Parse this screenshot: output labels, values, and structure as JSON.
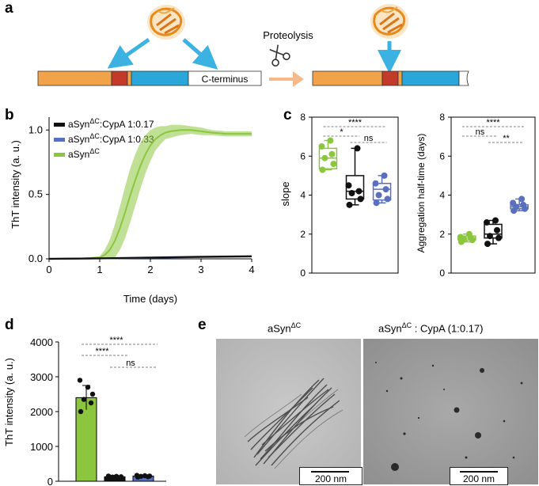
{
  "panels": {
    "a": "a",
    "b": "b",
    "c": "c",
    "d": "d",
    "e": "e"
  },
  "colors": {
    "asyn": "#8cc63f",
    "black": "#111111",
    "blue": "#5b6fbf",
    "domain_orange": "#f2a34a",
    "domain_red": "#c43a2a",
    "domain_blue": "#2aa6d9",
    "arrow_blue": "#3bb2e2",
    "arrow_peach": "#f6b98a",
    "protein": "#e88a1a"
  },
  "schematic": {
    "proteolysis_label": "Proteolysis",
    "cterminus_label": "C-terminus",
    "scissors_icon": "scissors-icon",
    "protein_icon": "cypa-structure-icon"
  },
  "chart_data": [
    {
      "id": "b",
      "type": "line",
      "xlabel": "Time (days)",
      "ylabel": "ThT intensity (a. u.)",
      "xlim": [
        0,
        4
      ],
      "ylim": [
        0,
        1.1
      ],
      "xticks": [
        "0",
        "1",
        "2",
        "3",
        "4"
      ],
      "yticks": [
        "0.0",
        "0.5",
        "1.0"
      ],
      "legend_position": "top-left",
      "legend": [
        {
          "base": "aSyn",
          "sup": "ΔC",
          "suffix": ":CypA 1:0.17",
          "color": "#111111"
        },
        {
          "base": "aSyn",
          "sup": "ΔC",
          "suffix": ":CypA 1:0.33",
          "color": "#5b6fbf"
        },
        {
          "base": "aSyn",
          "sup": "ΔC",
          "suffix": "",
          "color": "#8cc63f"
        }
      ],
      "series": [
        {
          "x": [
            0,
            0.5,
            1.0,
            1.1,
            1.2,
            1.3,
            1.4,
            1.5,
            1.6,
            1.7,
            1.8,
            1.9,
            2.0,
            2.1,
            2.2,
            2.3,
            2.4,
            2.6,
            2.8,
            3.0,
            3.2,
            3.5,
            4.0
          ],
          "y": [
            0.0,
            0.0,
            0.01,
            0.03,
            0.07,
            0.14,
            0.24,
            0.36,
            0.49,
            0.61,
            0.72,
            0.81,
            0.88,
            0.93,
            0.96,
            0.98,
            0.99,
            1.0,
            1.0,
            0.99,
            0.98,
            0.97,
            0.97
          ],
          "band": [
            0.0,
            0.0,
            0.01,
            0.04,
            0.08,
            0.13,
            0.17,
            0.2,
            0.21,
            0.2,
            0.18,
            0.15,
            0.12,
            0.09,
            0.07,
            0.05,
            0.05,
            0.04,
            0.03,
            0.03,
            0.02,
            0.02,
            0.02
          ],
          "color": "#8cc63f"
        },
        {
          "x": [
            0,
            1,
            2,
            3,
            4
          ],
          "y": [
            0.0,
            0.003,
            0.008,
            0.014,
            0.018
          ],
          "band": [
            0,
            0.003,
            0.004,
            0.005,
            0.005
          ],
          "color": "#5b6fbf"
        },
        {
          "x": [
            0,
            1,
            2,
            3,
            4
          ],
          "y": [
            0.0,
            0.004,
            0.01,
            0.016,
            0.02
          ],
          "band": [
            0,
            0.003,
            0.004,
            0.005,
            0.005
          ],
          "color": "#111111"
        }
      ]
    },
    {
      "id": "c1",
      "type": "box",
      "ylabel": "slope",
      "ylim": [
        0,
        8
      ],
      "yticks": [
        "0",
        "2",
        "4",
        "6",
        "8"
      ],
      "boxes": [
        {
          "color": "#8cc63f",
          "min": 5.3,
          "q1": 5.35,
          "median": 5.9,
          "q3": 6.4,
          "max": 6.8,
          "points": [
            5.3,
            5.6,
            5.9,
            6.1,
            6.5,
            6.8
          ]
        },
        {
          "color": "#111111",
          "min": 3.5,
          "q1": 3.8,
          "median": 4.2,
          "q3": 5.0,
          "max": 6.4,
          "points": [
            3.5,
            3.8,
            4.1,
            4.2,
            4.5,
            6.4
          ]
        },
        {
          "color": "#5b6fbf",
          "min": 3.6,
          "q1": 3.75,
          "median": 4.3,
          "q3": 4.6,
          "max": 5.0,
          "points": [
            3.6,
            3.8,
            4.0,
            4.3,
            4.6,
            5.0
          ]
        }
      ],
      "significance": [
        {
          "from": 0,
          "to": 1,
          "label": "*"
        },
        {
          "from": 0,
          "to": 2,
          "label": "****"
        },
        {
          "from": 1,
          "to": 2,
          "label": "ns"
        }
      ]
    },
    {
      "id": "c2",
      "type": "box",
      "ylabel": "Aggregation half-time (days)",
      "ylim": [
        0,
        8
      ],
      "yticks": [
        "0",
        "2",
        "4",
        "6",
        "8"
      ],
      "boxes": [
        {
          "color": "#8cc63f",
          "min": 1.6,
          "q1": 1.7,
          "median": 1.8,
          "q3": 1.9,
          "max": 2.0,
          "points": [
            1.6,
            1.7,
            1.75,
            1.8,
            1.85,
            2.0
          ]
        },
        {
          "color": "#111111",
          "min": 1.5,
          "q1": 1.8,
          "median": 2.0,
          "q3": 2.5,
          "max": 2.7,
          "points": [
            1.5,
            1.8,
            1.9,
            2.2,
            2.6,
            2.7
          ]
        },
        {
          "color": "#5b6fbf",
          "min": 3.2,
          "q1": 3.3,
          "median": 3.4,
          "q3": 3.5,
          "max": 3.8,
          "points": [
            3.2,
            3.3,
            3.4,
            3.5,
            3.6,
            3.8
          ]
        }
      ],
      "significance": [
        {
          "from": 0,
          "to": 1,
          "label": "ns"
        },
        {
          "from": 0,
          "to": 2,
          "label": "****"
        },
        {
          "from": 1,
          "to": 2,
          "label": "**"
        }
      ]
    },
    {
      "id": "d",
      "type": "bar",
      "ylabel": "ThT intensity (a. u.)",
      "ylim": [
        0,
        4000
      ],
      "yticks": [
        "0",
        "1000",
        "2000",
        "3000",
        "4000"
      ],
      "values": [
        2400,
        130,
        150
      ],
      "errors": [
        350,
        40,
        30
      ],
      "colors": [
        "#8cc63f",
        "#111111",
        "#5b6fbf"
      ],
      "points": [
        [
          2000,
          2250,
          2350,
          2500,
          2700,
          2900
        ],
        [
          80,
          100,
          120,
          130,
          140,
          150
        ],
        [
          120,
          130,
          140,
          150,
          160,
          170
        ]
      ],
      "significance": [
        {
          "from": 0,
          "to": 1,
          "label": "****"
        },
        {
          "from": 0,
          "to": 2,
          "label": "****"
        },
        {
          "from": 1,
          "to": 2,
          "label": "ns"
        }
      ]
    }
  ],
  "micrographs": {
    "left": {
      "base": "aSyn",
      "sup": "ΔC",
      "suffix": "",
      "scale_label": "200 nm"
    },
    "right": {
      "base": "aSyn",
      "sup": "ΔC",
      "suffix": " : CypA (1:0.17)",
      "scale_label": "200 nm"
    }
  }
}
